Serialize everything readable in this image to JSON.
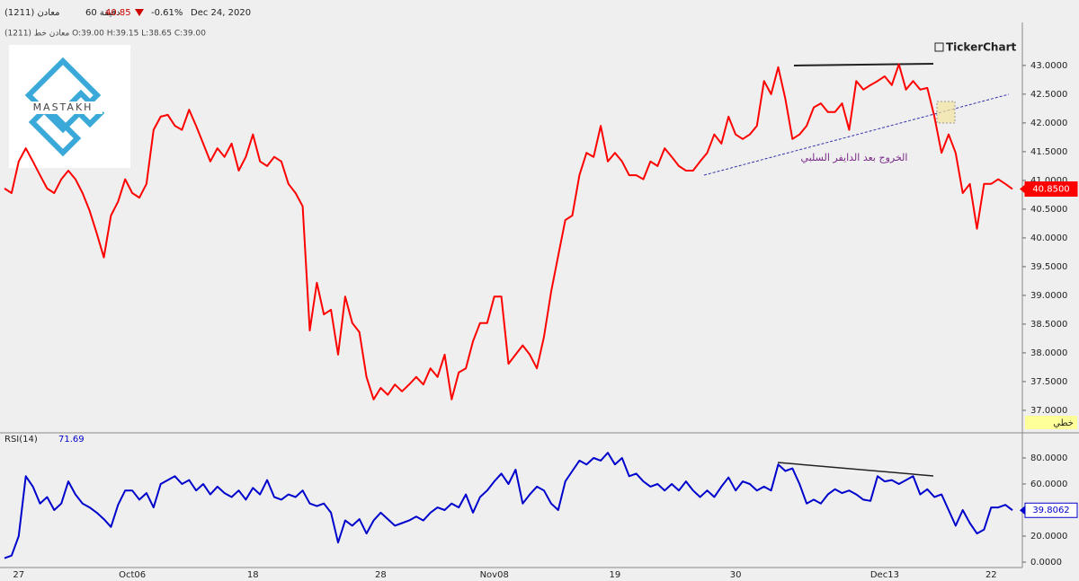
{
  "header": {
    "interval": "60 دقيقة",
    "price": "40.85",
    "change": "-0.61%",
    "date": "Dec 24, 2020",
    "ohlc": "(1211) معادن خط O:39.00 H:39.15 L:38.65 C:39.00",
    "brand": "TickerChart",
    "logo": "MASTAKH",
    "chart_style": "خطي"
  },
  "chart_data": {
    "type": "line",
    "annotation": "الخروج بعد الدايفر السلبي",
    "categories": [
      null,
      null,
      "27",
      null,
      null,
      null,
      null,
      null,
      null,
      null,
      null,
      null,
      null,
      null,
      null,
      null,
      null,
      null,
      "Oct06",
      null,
      null,
      null,
      null,
      null,
      null,
      null,
      null,
      null,
      null,
      null,
      null,
      null,
      null,
      null,
      null,
      "18",
      null,
      null,
      null,
      null,
      null,
      null,
      null,
      null,
      null,
      null,
      null,
      null,
      null,
      null,
      null,
      null,
      null,
      "28",
      null,
      null,
      null,
      null,
      null,
      null,
      null,
      null,
      null,
      null,
      null,
      null,
      null,
      null,
      null,
      "Nov08",
      null,
      null,
      null,
      null,
      null,
      null,
      null,
      null,
      null,
      null,
      null,
      null,
      null,
      null,
      null,
      null,
      "19",
      null,
      null,
      null,
      null,
      null,
      null,
      null,
      null,
      null,
      null,
      null,
      null,
      null,
      null,
      null,
      null,
      "30",
      null,
      null,
      null,
      null,
      null,
      null,
      null,
      null,
      null,
      null,
      null,
      null,
      null,
      null,
      null,
      null,
      null,
      null,
      null,
      null,
      "Dec13",
      null,
      null,
      null,
      null,
      null,
      null,
      null,
      null,
      null,
      null,
      null,
      null,
      null,
      null,
      "22",
      null,
      null,
      null
    ],
    "series": [
      {
        "name": "(1211) معادن",
        "color": "#ff0000",
        "last": {
          "value": 40.85,
          "label": "40.8500"
        },
        "values": [
          40.86,
          40.78,
          41.33,
          41.56,
          41.33,
          41.09,
          40.86,
          40.78,
          41.02,
          41.17,
          41.02,
          40.78,
          40.47,
          40.08,
          39.66,
          40.39,
          40.63,
          41.02,
          40.78,
          40.7,
          40.94,
          41.88,
          42.11,
          42.14,
          41.95,
          41.88,
          42.23,
          41.95,
          41.64,
          41.33,
          41.56,
          41.41,
          41.64,
          41.17,
          41.41,
          41.8,
          41.33,
          41.25,
          41.41,
          41.33,
          40.94,
          40.78,
          40.55,
          38.39,
          39.22,
          38.67,
          38.75,
          37.97,
          38.98,
          38.52,
          38.36,
          37.58,
          37.19,
          37.39,
          37.27,
          37.45,
          37.33,
          37.45,
          37.58,
          37.45,
          37.73,
          37.58,
          37.97,
          37.19,
          37.66,
          37.73,
          38.2,
          38.52,
          38.52,
          38.98,
          38.98,
          37.81,
          37.97,
          38.13,
          37.97,
          37.73,
          38.28,
          39.06,
          39.69,
          40.31,
          40.39,
          41.09,
          41.48,
          41.41,
          41.95,
          41.33,
          41.48,
          41.33,
          41.09,
          41.09,
          41.02,
          41.33,
          41.25,
          41.56,
          41.41,
          41.25,
          41.17,
          41.17,
          41.33,
          41.48,
          41.8,
          41.64,
          42.11,
          41.8,
          41.72,
          41.8,
          41.95,
          42.73,
          42.5,
          42.97,
          42.42,
          41.72,
          41.8,
          41.95,
          42.27,
          42.34,
          42.19,
          42.19,
          42.34,
          41.88,
          42.73,
          42.58,
          42.66,
          42.73,
          42.81,
          42.66,
          43.02,
          42.58,
          42.73,
          42.58,
          42.61,
          42.11,
          41.48,
          41.8,
          41.48,
          40.78,
          40.94,
          40.16,
          40.94,
          40.94,
          41.02,
          40.94,
          40.85
        ]
      },
      {
        "name": "RSI(14)",
        "color": "#0000cc",
        "axis": "y2",
        "readout": "71.69",
        "last": {
          "value": 39.8062,
          "label": "39.8062"
        },
        "values": [
          3,
          5,
          20,
          66,
          58,
          45,
          50,
          40,
          45,
          62,
          52,
          45,
          42,
          38,
          33,
          27,
          44,
          55,
          55,
          48,
          53,
          42,
          60,
          63,
          66,
          60,
          63,
          55,
          60,
          52,
          58,
          53,
          50,
          55,
          48,
          57,
          52,
          63,
          50,
          48,
          52,
          50,
          55,
          45,
          43,
          45,
          38,
          15,
          32,
          28,
          33,
          22,
          32,
          38,
          33,
          28,
          30,
          32,
          35,
          32,
          38,
          42,
          40,
          45,
          42,
          52,
          38,
          50,
          55,
          62,
          68,
          60,
          71,
          45,
          52,
          58,
          55,
          45,
          40,
          62,
          70,
          78,
          75,
          80,
          78,
          84,
          75,
          80,
          66,
          68,
          62,
          58,
          60,
          55,
          60,
          55,
          62,
          55,
          50,
          55,
          50,
          58,
          65,
          55,
          62,
          60,
          55,
          58,
          55,
          75,
          70,
          72,
          60,
          45,
          48,
          45,
          52,
          56,
          53,
          55,
          52,
          48,
          47,
          66,
          62,
          63,
          60,
          63,
          66,
          52,
          56,
          50,
          52,
          40,
          28,
          40,
          30,
          22,
          25,
          42,
          42,
          44,
          39.8062
        ]
      }
    ],
    "ylim": [
      36.64,
      43.67
    ],
    "yticks": [
      {
        "value": 37,
        "label": "37.0000"
      },
      {
        "value": 37.5,
        "label": "37.5000"
      },
      {
        "value": 38,
        "label": "38.0000"
      },
      {
        "value": 38.5,
        "label": "38.5000"
      },
      {
        "value": 39,
        "label": "39.0000"
      },
      {
        "value": 39.5,
        "label": "39.5000"
      },
      {
        "value": 40,
        "label": "40.0000"
      },
      {
        "value": 40.5,
        "label": "40.5000"
      },
      {
        "value": 41,
        "label": "41.0000"
      },
      {
        "value": 41.5,
        "label": "41.5000"
      },
      {
        "value": 42,
        "label": "42.0000"
      },
      {
        "value": 42.5,
        "label": "42.5000"
      },
      {
        "value": 43,
        "label": "43.0000"
      }
    ],
    "y2lim": [
      -7.6,
      97.9
    ],
    "y2ticks": [
      {
        "value": 0,
        "label": "0.0000"
      },
      {
        "value": 20,
        "label": "20.0000"
      },
      {
        "value": 60,
        "label": "60.0000"
      },
      {
        "value": 80,
        "label": "80.0000"
      }
    ],
    "grid": false
  }
}
